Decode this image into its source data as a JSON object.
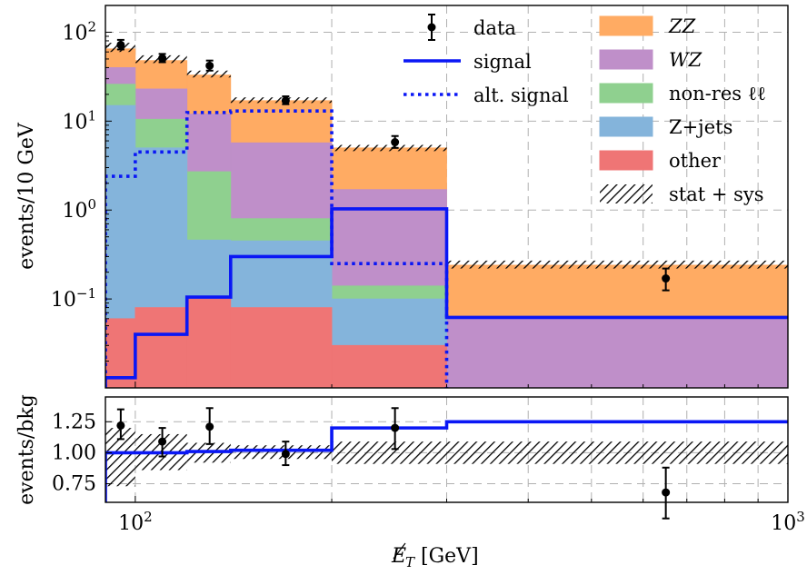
{
  "chart_data": [
    {
      "type": "histogram",
      "x_scale": "log",
      "y_scale": "log",
      "ylabel": "events/10 GeV",
      "xlim": [
        90,
        1000
      ],
      "ylim": [
        0.01,
        200
      ],
      "bin_edges": [
        90,
        100,
        120,
        140,
        200,
        300,
        1000
      ],
      "x_ticks": [
        {
          "value": 100,
          "label": "10",
          "exp": "2"
        },
        {
          "value": 1000,
          "label": "10",
          "exp": "3"
        }
      ],
      "y_ticks": [
        {
          "value": 100,
          "label": "10",
          "exp": "2"
        },
        {
          "value": 10,
          "label": "10",
          "exp": "1"
        },
        {
          "value": 1,
          "label": "10",
          "exp": "0"
        },
        {
          "value": 0.1,
          "label": "10",
          "exp": "−1"
        }
      ],
      "stack": [
        {
          "name": "other",
          "color": "#ef7575",
          "values": [
            0.06,
            0.08,
            0.1,
            0.08,
            0.03,
            0.005
          ]
        },
        {
          "name": "Z+jets",
          "color": "#84b4db",
          "values": [
            15,
            5,
            0.46,
            0.45,
            0.1,
            0.005
          ]
        },
        {
          "name": "non-res ℓℓ",
          "color": "#8fd08f",
          "values": [
            26,
            10.5,
            2.7,
            0.8,
            0.14,
            0.005
          ]
        },
        {
          "name": "WZ",
          "color": "#bf8fc9",
          "values": [
            40,
            23,
            12,
            5.7,
            1.7,
            0.062
          ]
        },
        {
          "name": "ZZ",
          "color": "#ffab63",
          "values": [
            65,
            48,
            33,
            17,
            5,
            0.24
          ]
        }
      ],
      "stat_sys_band": [
        [
          60,
          76
        ],
        [
          45,
          55
        ],
        [
          31,
          37
        ],
        [
          16,
          18.5
        ],
        [
          4.6,
          5.4
        ],
        [
          0.22,
          0.27
        ]
      ],
      "data_points": [
        {
          "x": 95,
          "y": 72,
          "err": [
            64,
            82
          ]
        },
        {
          "x": 110,
          "y": 51,
          "err": [
            46,
            57
          ]
        },
        {
          "x": 130,
          "y": 42,
          "err": [
            37,
            48
          ]
        },
        {
          "x": 170,
          "y": 17,
          "err": [
            15.5,
            19
          ]
        },
        {
          "x": 250,
          "y": 5.8,
          "err": [
            5.0,
            6.8
          ]
        },
        {
          "x": 650,
          "y": 0.17,
          "err": [
            0.125,
            0.22
          ]
        }
      ],
      "signal": [
        0.013,
        0.04,
        0.105,
        0.3,
        1.03,
        0.062
      ],
      "alt_signal": [
        2.4,
        4.5,
        12.5,
        13,
        0.25,
        0.0001
      ],
      "legend": [
        {
          "kind": "data",
          "label": "data"
        },
        {
          "kind": "signal",
          "label": "signal"
        },
        {
          "kind": "alt_signal",
          "label": "alt. signal"
        },
        {
          "kind": "ZZ",
          "label": "ZZ",
          "italic": true,
          "color": "#ffab63"
        },
        {
          "kind": "WZ",
          "label": "WZ",
          "italic": true,
          "color": "#bf8fc9"
        },
        {
          "kind": "nonres",
          "label": "non-res ℓℓ",
          "color": "#8fd08f"
        },
        {
          "kind": "zjets",
          "label": "Z+jets",
          "color": "#84b4db"
        },
        {
          "kind": "other",
          "label": "other",
          "color": "#ef7575"
        },
        {
          "kind": "statsys",
          "label": "stat + sys"
        }
      ],
      "legend_placement": "top-right",
      "grid": true
    },
    {
      "type": "ratio",
      "x_scale": "log",
      "ylabel": "events/bkg",
      "xlabel": "E_T [GeV]",
      "xlabel_main": "E",
      "xlabel_sub": "T",
      "xlabel_unit": "[GeV]",
      "ylim": [
        0.6,
        1.45
      ],
      "y_ticks": [
        {
          "value": 1.25,
          "label": "1.25"
        },
        {
          "value": 1.0,
          "label": "1.00"
        },
        {
          "value": 0.75,
          "label": "0.75"
        }
      ],
      "signal_ratio": [
        1.0,
        1.0,
        1.01,
        1.02,
        1.2,
        1.25
      ],
      "band": [
        [
          0.73,
          1.2
        ],
        [
          0.86,
          1.15
        ],
        [
          0.92,
          1.08
        ],
        [
          0.95,
          1.06
        ],
        [
          0.91,
          1.09
        ],
        [
          0.91,
          1.09
        ]
      ],
      "data_points": [
        {
          "x": 95,
          "y": 1.22,
          "err": [
            1.11,
            1.35
          ]
        },
        {
          "x": 110,
          "y": 1.09,
          "err": [
            0.97,
            1.2
          ]
        },
        {
          "x": 130,
          "y": 1.21,
          "err": [
            1.07,
            1.36
          ]
        },
        {
          "x": 170,
          "y": 0.99,
          "err": [
            0.9,
            1.09
          ]
        },
        {
          "x": 250,
          "y": 1.2,
          "err": [
            1.03,
            1.36
          ]
        },
        {
          "x": 650,
          "y": 0.68,
          "err": [
            0.47,
            0.88
          ]
        }
      ]
    }
  ]
}
